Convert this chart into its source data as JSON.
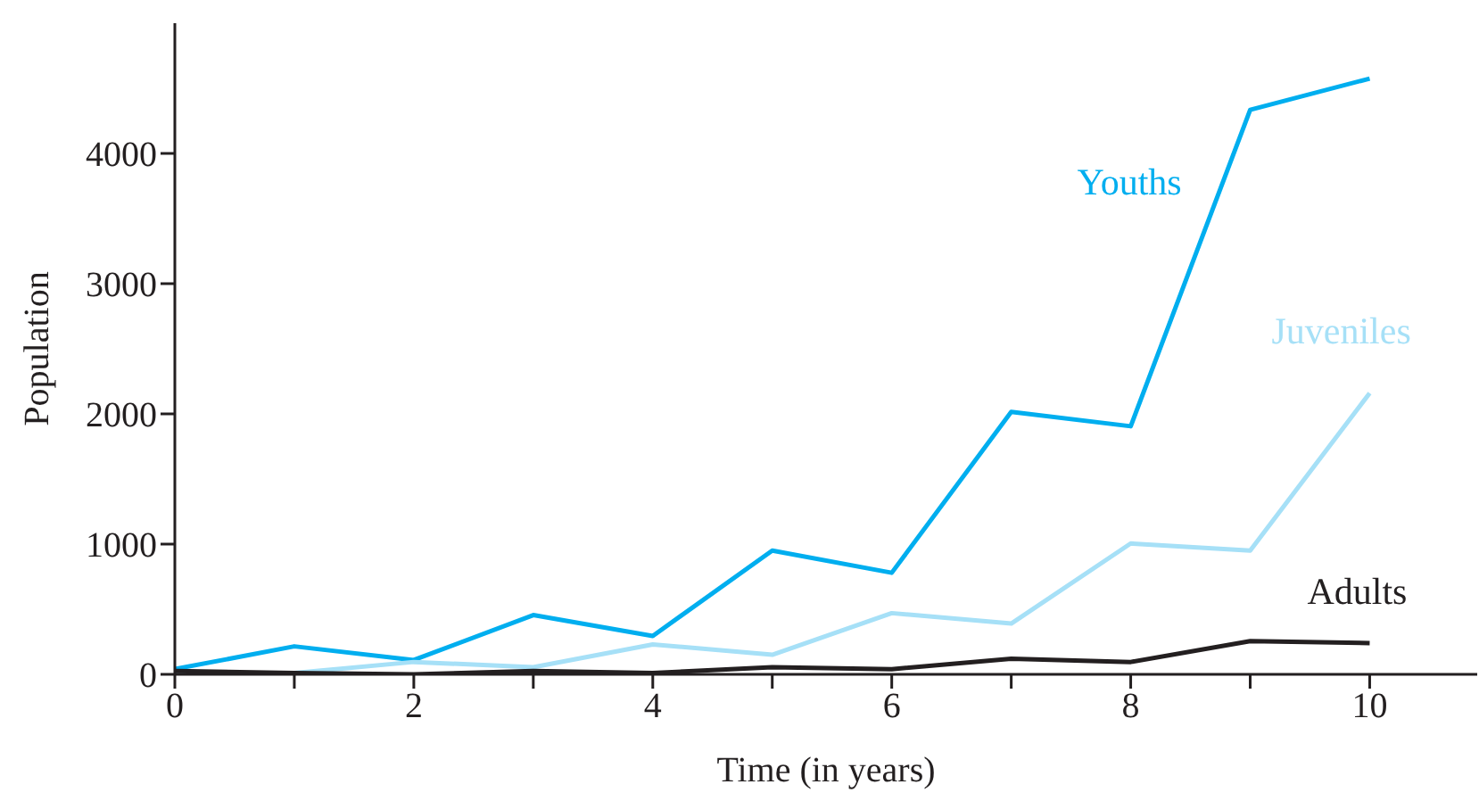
{
  "chart_data": {
    "type": "line",
    "xlabel": "Time (in years)",
    "ylabel": "Population",
    "x": [
      0,
      1,
      2,
      3,
      4,
      5,
      6,
      7,
      8,
      9,
      10
    ],
    "series": [
      {
        "name": "Youths",
        "color": "#00aeef",
        "values": [
          40,
          215,
          110,
          455,
          295,
          950,
          780,
          2015,
          1905,
          4335,
          4575
        ]
      },
      {
        "name": "Juveniles",
        "color": "#a6e0f7",
        "values": [
          0,
          10,
          95,
          55,
          230,
          150,
          470,
          390,
          1005,
          950,
          2160
        ]
      },
      {
        "name": "Adults",
        "color": "#231f20",
        "values": [
          25,
          10,
          0,
          25,
          10,
          55,
          40,
          120,
          95,
          255,
          240
        ]
      }
    ],
    "xlim": [
      0,
      10.9
    ],
    "xticks": [
      0,
      {
        "value": 1,
        "label": null
      },
      2,
      {
        "value": 3,
        "label": null
      },
      4,
      {
        "value": 5,
        "label": null
      },
      6,
      {
        "value": 7,
        "label": null
      },
      8,
      {
        "value": 9,
        "label": null
      },
      10
    ],
    "ylim": [
      0,
      5000
    ],
    "yticks": [
      0,
      1000,
      2000,
      3000,
      4000
    ],
    "grid": false,
    "legend": false,
    "marker": "none",
    "line_style": "solid"
  }
}
